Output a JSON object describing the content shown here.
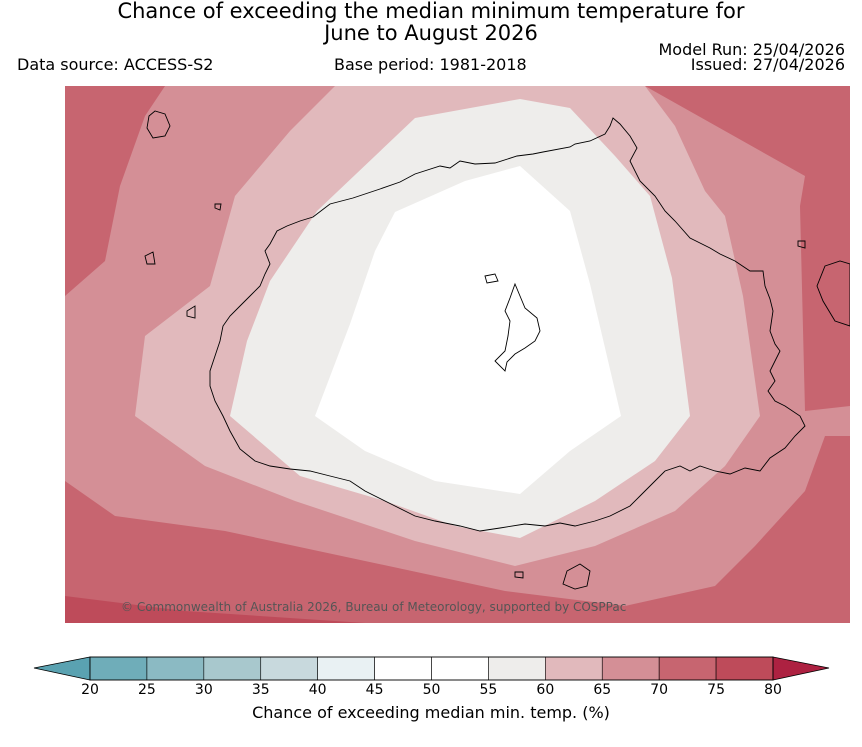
{
  "title": {
    "line1": "Chance of exceeding the median minimum temperature for",
    "line2": "June to August 2026"
  },
  "header": {
    "data_source": "Data source: ACCESS-S2",
    "base_period": "Base period: 1981-2018",
    "model_run": "Model Run: 25/04/2026",
    "issued": "Issued: 27/04/2026"
  },
  "map": {
    "copyright": "© Commonwealth of Australia 2026, Bureau of Meteorology, supported by COSPPac",
    "zone_colors": {
      "z75": "#c76570",
      "z70": "#d48f96",
      "z65": "#e1b9bc",
      "z55": "#eeedeb",
      "z50": "#ffffff",
      "z80": "#be4b5a",
      "coast": "#000000"
    }
  },
  "colorbar": {
    "label": "Chance of exceeding median min. temp. (%)",
    "ticks": [
      "20",
      "25",
      "30",
      "35",
      "40",
      "45",
      "50",
      "55",
      "60",
      "65",
      "70",
      "75",
      "80"
    ],
    "bins": [
      {
        "from": 20,
        "to": 25,
        "color": "#6fadb9"
      },
      {
        "from": 25,
        "to": 30,
        "color": "#8bbac3"
      },
      {
        "from": 30,
        "to": 35,
        "color": "#a8c8cd"
      },
      {
        "from": 35,
        "to": 40,
        "color": "#c8d9dd"
      },
      {
        "from": 40,
        "to": 45,
        "color": "#e9f1f3"
      },
      {
        "from": 45,
        "to": 50,
        "color": "#ffffff"
      },
      {
        "from": 50,
        "to": 55,
        "color": "#ffffff"
      },
      {
        "from": 55,
        "to": 60,
        "color": "#eeedeb"
      },
      {
        "from": 60,
        "to": 65,
        "color": "#e1b9bc"
      },
      {
        "from": 65,
        "to": 70,
        "color": "#d48f96"
      },
      {
        "from": 70,
        "to": 75,
        "color": "#c76570"
      },
      {
        "from": 75,
        "to": 80,
        "color": "#be4b5a"
      }
    ],
    "under_color": "#5aa2b1",
    "over_color": "#ad2141"
  }
}
